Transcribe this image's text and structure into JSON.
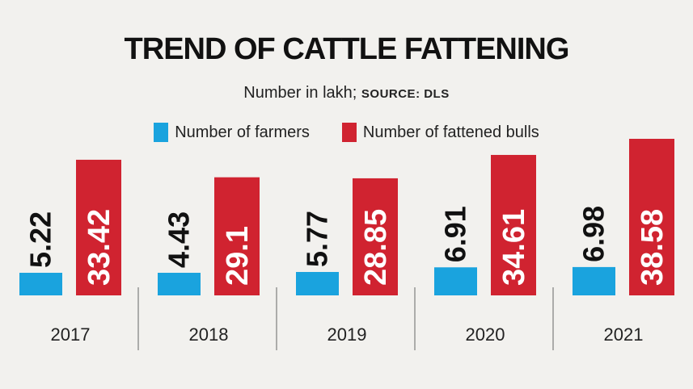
{
  "chart_data": {
    "type": "bar",
    "title": "TREND OF CATTLE FATTENING",
    "subtitle": "Number in lakh;",
    "source": "SOURCE: DLS",
    "categories": [
      "2017",
      "2018",
      "2019",
      "2020",
      "2021"
    ],
    "series": [
      {
        "name": "Number of farmers",
        "color": "#1aa3de",
        "values": [
          5.22,
          4.43,
          5.77,
          6.91,
          6.98
        ],
        "labels": [
          "5.22",
          "4.43",
          "5.77",
          "6.91",
          "6.98"
        ]
      },
      {
        "name": "Number of fattened bulls",
        "color": "#d02330",
        "values": [
          33.42,
          29.1,
          28.85,
          34.61,
          38.58
        ],
        "labels": [
          "33.42",
          "29.1",
          "28.85",
          "34.61",
          "38.58"
        ]
      }
    ],
    "xlabel": "",
    "ylabel": "",
    "grid": false,
    "legend": "top"
  }
}
